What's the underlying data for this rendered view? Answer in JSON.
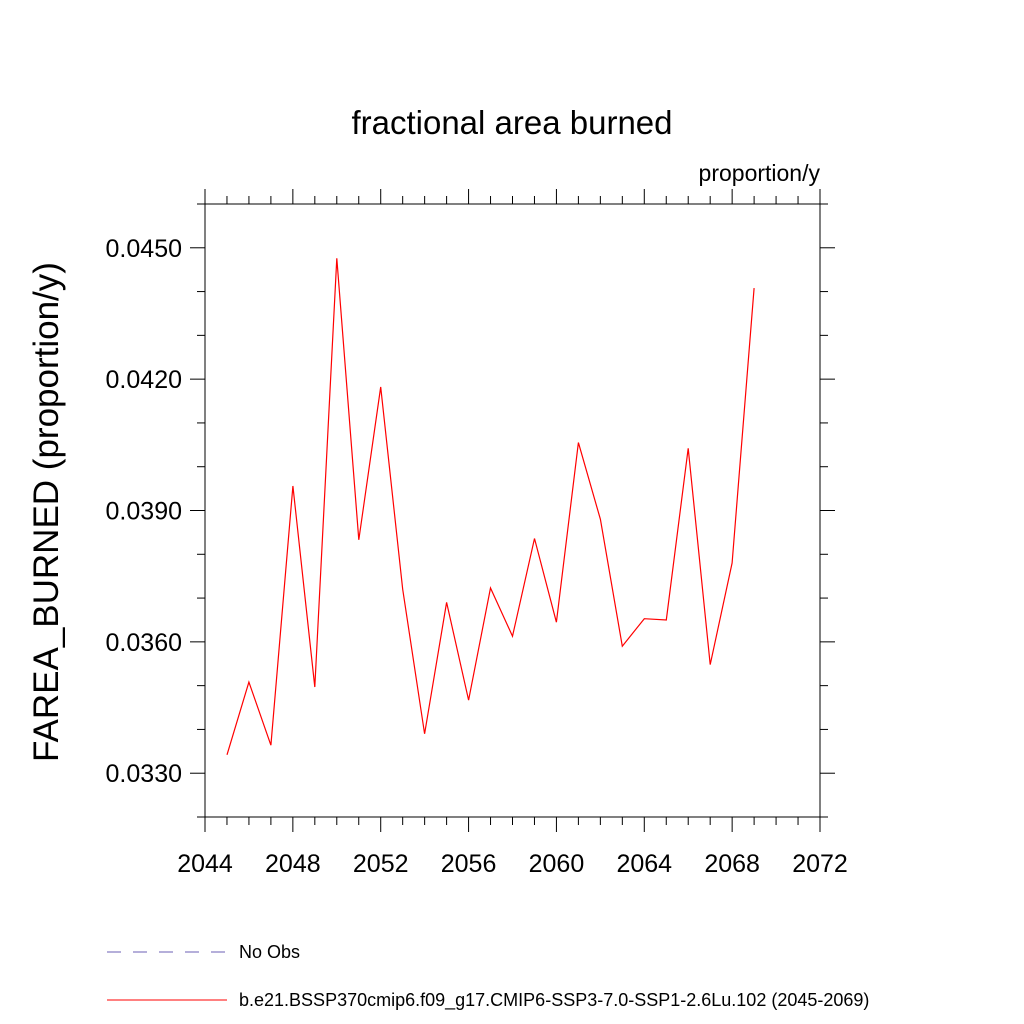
{
  "chart_data": {
    "type": "line",
    "title": "fractional area burned",
    "units_label": "proportion/y",
    "ylabel": "FAREA_BURNED  (proportion/y)",
    "xlabel": "",
    "xlim": [
      2044,
      2072
    ],
    "ylim": [
      0.032,
      0.046
    ],
    "x_ticks": [
      2044,
      2048,
      2052,
      2056,
      2060,
      2064,
      2068,
      2072
    ],
    "y_ticks": [
      0.033,
      0.036,
      0.039,
      0.042,
      0.045
    ],
    "y_tick_labels": [
      "0.0330",
      "0.0360",
      "0.0390",
      "0.0420",
      "0.0450"
    ],
    "grid": false,
    "legend_position": "bottom",
    "series": [
      {
        "name": "b.e21.BSSP370cmip6.f09_g17.CMIP6-SSP3-7.0-SSP1-2.6Lu.102 (2045-2069)",
        "color": "#ff0000",
        "style": "solid",
        "x": [
          2045,
          2046,
          2047,
          2048,
          2049,
          2050,
          2051,
          2052,
          2053,
          2054,
          2055,
          2056,
          2057,
          2058,
          2059,
          2060,
          2061,
          2062,
          2063,
          2064,
          2065,
          2066,
          2067,
          2068,
          2069
        ],
        "y": [
          0.03342,
          0.03508,
          0.03364,
          0.03956,
          0.03497,
          0.04476,
          0.03833,
          0.04182,
          0.0372,
          0.0339,
          0.0369,
          0.03467,
          0.03723,
          0.03613,
          0.03836,
          0.03645,
          0.04055,
          0.0388,
          0.0359,
          0.03653,
          0.0365,
          0.04042,
          0.03548,
          0.0378,
          0.04408
        ]
      }
    ],
    "legend": [
      {
        "label": "No Obs",
        "color": "#6b5fb5",
        "style": "dashed"
      },
      {
        "label": "b.e21.BSSP370cmip6.f09_g17.CMIP6-SSP3-7.0-SSP1-2.6Lu.102 (2045-2069)",
        "color": "#ff0000",
        "style": "solid"
      }
    ]
  }
}
